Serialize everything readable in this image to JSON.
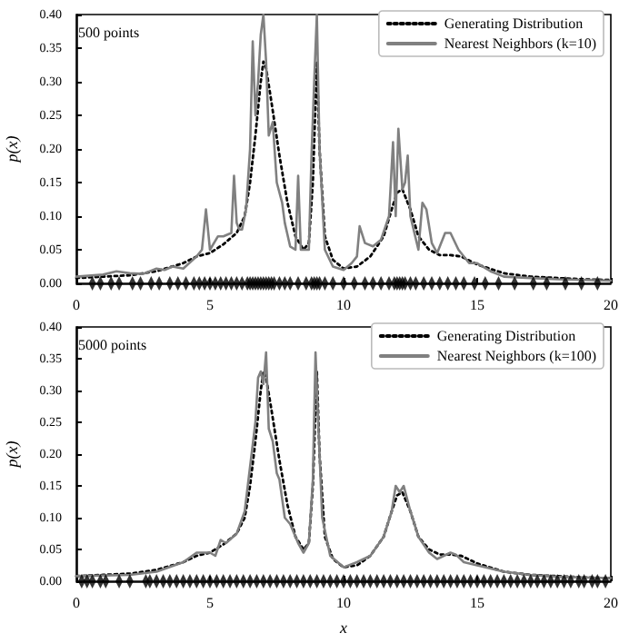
{
  "chart_data": [
    {
      "type": "line",
      "ylabel": "p(x)",
      "annotations": [
        "500 points"
      ],
      "xlim": [
        0,
        20
      ],
      "xticks": [
        0,
        5,
        10,
        15,
        20
      ],
      "ylim": [
        0,
        0.4
      ],
      "yticks": [
        {
          "value": 0,
          "label": "0.00"
        },
        0.05,
        {
          "value": 0.1,
          "label": "0.10"
        },
        0.15,
        {
          "value": 0.2,
          "label": "0.20"
        },
        0.25,
        {
          "value": 0.3,
          "label": "0.30"
        },
        0.35,
        {
          "value": 0.4,
          "label": "0.40"
        }
      ],
      "grid": false,
      "legend": "top right",
      "marker": "none",
      "series": [
        {
          "type": "scatter",
          "marker": "diamond",
          "color": "#000000",
          "x": [
            0.6,
            0.9,
            1.3,
            1.6,
            2.1,
            2.4,
            2.8,
            3.1,
            3.5,
            3.8,
            4.1,
            4.4,
            4.6,
            4.8,
            5,
            5.2,
            5.4,
            5.6,
            5.8,
            6,
            6.2,
            6.4,
            6.5,
            6.6,
            6.7,
            6.8,
            6.9,
            7,
            7.1,
            7.2,
            7.3,
            7.4,
            7.6,
            7.8,
            8,
            8.3,
            8.6,
            8.8,
            8.9,
            9,
            9.1,
            9.3,
            9.6,
            10,
            10.4,
            10.8,
            11.1,
            11.4,
            11.7,
            11.9,
            12,
            12.1,
            12.2,
            12.3,
            12.5,
            12.7,
            13,
            13.3,
            13.6,
            13.9,
            14.2,
            14.5,
            14.9,
            15.3,
            15.8,
            16.4,
            17.1,
            17.6,
            18.3,
            18.9,
            19.5
          ],
          "values": [
            0,
            0,
            0,
            0,
            0,
            0,
            0,
            0,
            0,
            0,
            0,
            0,
            0,
            0,
            0,
            0,
            0,
            0,
            0,
            0,
            0,
            0,
            0,
            0,
            0,
            0,
            0,
            0,
            0,
            0,
            0,
            0,
            0,
            0,
            0,
            0,
            0,
            0,
            0,
            0,
            0,
            0,
            0,
            0,
            0,
            0,
            0,
            0,
            0,
            0,
            0,
            0,
            0,
            0,
            0,
            0,
            0,
            0,
            0,
            0,
            0,
            0,
            0,
            0,
            0,
            0,
            0,
            0,
            0,
            0,
            0
          ]
        },
        {
          "name": "Generating Distribution",
          "color": "#000000",
          "line_style": "dotted",
          "x": [
            0,
            1,
            2,
            3,
            4,
            4.5,
            5,
            5.5,
            6,
            6.3,
            6.5,
            6.7,
            6.9,
            7,
            7.1,
            7.3,
            7.6,
            7.9,
            8.2,
            8.5,
            8.7,
            8.85,
            9,
            9.1,
            9.3,
            9.6,
            10,
            10.5,
            11,
            11.5,
            11.8,
            12,
            12.2,
            12.5,
            12.8,
            13.2,
            13.6,
            14,
            14.4,
            15,
            16,
            17,
            18,
            19,
            20
          ],
          "values": [
            0.008,
            0.01,
            0.012,
            0.018,
            0.03,
            0.04,
            0.045,
            0.058,
            0.075,
            0.1,
            0.15,
            0.22,
            0.3,
            0.33,
            0.32,
            0.27,
            0.19,
            0.12,
            0.07,
            0.05,
            0.06,
            0.15,
            0.33,
            0.2,
            0.07,
            0.035,
            0.022,
            0.025,
            0.04,
            0.07,
            0.11,
            0.135,
            0.14,
            0.11,
            0.07,
            0.05,
            0.042,
            0.042,
            0.04,
            0.028,
            0.015,
            0.01,
            0.008,
            0.006,
            0.005
          ]
        },
        {
          "name": "Nearest Neighbors (k=10)",
          "color": "#808080",
          "line_style": "solid",
          "x": [
            0,
            1,
            1.5,
            2,
            2.5,
            3,
            3.3,
            3.6,
            4,
            4.5,
            4.7,
            4.85,
            5,
            5.3,
            5.5,
            5.8,
            5.9,
            6,
            6.1,
            6.2,
            6.35,
            6.5,
            6.6,
            6.7,
            6.8,
            6.9,
            7,
            7.1,
            7.2,
            7.35,
            7.5,
            7.7,
            7.8,
            8,
            8.2,
            8.3,
            8.4,
            8.7,
            8.8,
            8.9,
            9,
            9.1,
            9.3,
            9.6,
            10,
            10.3,
            10.5,
            10.6,
            10.8,
            11.1,
            11.4,
            11.7,
            11.85,
            11.95,
            12.05,
            12.2,
            12.3,
            12.4,
            12.5,
            12.8,
            12.95,
            13.1,
            13.3,
            13.5,
            13.8,
            14,
            14.3,
            14.7,
            15,
            15.5,
            16,
            17,
            18,
            19,
            20
          ],
          "values": [
            0.01,
            0.013,
            0.018,
            0.015,
            0.014,
            0.022,
            0.02,
            0.025,
            0.022,
            0.04,
            0.05,
            0.11,
            0.05,
            0.07,
            0.07,
            0.075,
            0.16,
            0.09,
            0.08,
            0.08,
            0.11,
            0.2,
            0.36,
            0.25,
            0.3,
            0.37,
            0.4,
            0.33,
            0.22,
            0.24,
            0.15,
            0.12,
            0.09,
            0.055,
            0.05,
            0.16,
            0.05,
            0.05,
            0.19,
            0.3,
            0.4,
            0.2,
            0.05,
            0.025,
            0.02,
            0.03,
            0.04,
            0.085,
            0.06,
            0.055,
            0.065,
            0.1,
            0.21,
            0.1,
            0.23,
            0.14,
            0.15,
            0.19,
            0.1,
            0.05,
            0.12,
            0.11,
            0.06,
            0.045,
            0.075,
            0.075,
            0.05,
            0.03,
            0.03,
            0.018,
            0.01,
            0.008,
            0.006,
            0.005,
            0.004
          ]
        }
      ]
    },
    {
      "type": "line",
      "xlabel": "x",
      "ylabel": "p(x)",
      "annotations": [
        "5000 points"
      ],
      "xlim": [
        0,
        20
      ],
      "xticks": [
        0,
        5,
        10,
        15,
        20
      ],
      "ylim": [
        0,
        0.4
      ],
      "yticks": [
        {
          "value": 0,
          "label": "0.00"
        },
        0.05,
        {
          "value": 0.1,
          "label": "0.10"
        },
        0.15,
        {
          "value": 0.2,
          "label": "0.20"
        },
        0.25,
        {
          "value": 0.3,
          "label": "0.30"
        },
        0.35,
        {
          "value": 0.4,
          "label": "0.40"
        }
      ],
      "grid": false,
      "legend": "top right",
      "marker": "none",
      "series": [
        {
          "type": "scatter",
          "marker": "diamond",
          "color": "#000000",
          "x": [
            0.2,
            0.4,
            0.6,
            0.9,
            1.1,
            1.6,
            2,
            2.6,
            2.75,
            3,
            3.25,
            3.5,
            3.75,
            4,
            4.25,
            4.5,
            4.75,
            5,
            5.25,
            5.5,
            5.75,
            6,
            6.25,
            6.5,
            6.75,
            7,
            7.25,
            7.5,
            7.75,
            8,
            8.25,
            8.5,
            8.75,
            9,
            9.25,
            9.5,
            9.75,
            10,
            10.25,
            10.5,
            10.75,
            11,
            11.25,
            11.5,
            11.75,
            12,
            12.25,
            12.5,
            12.75,
            13,
            13.25,
            13.5,
            13.75,
            14,
            14.25,
            14.5,
            14.75,
            15,
            15.25,
            15.5,
            15.75,
            16,
            16.25,
            16.5,
            16.75,
            17,
            17.25,
            17.5,
            17.75,
            18,
            18.25,
            18.5,
            18.8,
            19,
            19.3,
            19.5,
            19.8
          ],
          "values": [
            0,
            0,
            0,
            0,
            0,
            0,
            0,
            0,
            0,
            0,
            0,
            0,
            0,
            0,
            0,
            0,
            0,
            0,
            0,
            0,
            0,
            0,
            0,
            0,
            0,
            0,
            0,
            0,
            0,
            0,
            0,
            0,
            0,
            0,
            0,
            0,
            0,
            0,
            0,
            0,
            0,
            0,
            0,
            0,
            0,
            0,
            0,
            0,
            0,
            0,
            0,
            0,
            0,
            0,
            0,
            0,
            0,
            0,
            0,
            0,
            0,
            0,
            0,
            0,
            0,
            0,
            0,
            0,
            0,
            0,
            0,
            0,
            0,
            0,
            0,
            0,
            0
          ]
        },
        {
          "name": "Generating Distribution",
          "color": "#000000",
          "line_style": "dotted",
          "x": [
            0,
            1,
            2,
            3,
            4,
            4.5,
            5,
            5.5,
            6,
            6.3,
            6.5,
            6.7,
            6.9,
            7,
            7.1,
            7.3,
            7.6,
            7.9,
            8.2,
            8.5,
            8.7,
            8.85,
            9,
            9.1,
            9.3,
            9.6,
            10,
            10.5,
            11,
            11.5,
            11.8,
            12,
            12.2,
            12.5,
            12.8,
            13.2,
            13.6,
            14,
            14.4,
            15,
            16,
            17,
            18,
            19,
            20
          ],
          "values": [
            0.008,
            0.01,
            0.012,
            0.018,
            0.03,
            0.04,
            0.045,
            0.058,
            0.075,
            0.1,
            0.15,
            0.22,
            0.3,
            0.33,
            0.32,
            0.27,
            0.19,
            0.12,
            0.07,
            0.05,
            0.06,
            0.15,
            0.33,
            0.2,
            0.07,
            0.035,
            0.022,
            0.025,
            0.04,
            0.07,
            0.11,
            0.135,
            0.14,
            0.11,
            0.07,
            0.05,
            0.042,
            0.042,
            0.04,
            0.028,
            0.015,
            0.01,
            0.008,
            0.006,
            0.005
          ]
        },
        {
          "name": "Nearest Neighbors (k=100)",
          "color": "#808080",
          "line_style": "solid",
          "x": [
            0,
            2,
            3,
            4,
            4.5,
            5,
            5.2,
            5.4,
            5.6,
            6,
            6.3,
            6.5,
            6.7,
            6.8,
            6.9,
            7,
            7.1,
            7.2,
            7.35,
            7.5,
            7.6,
            7.8,
            8,
            8.3,
            8.5,
            8.7,
            8.85,
            8.95,
            9.05,
            9.2,
            9.5,
            10,
            10.5,
            11,
            11.5,
            11.8,
            11.95,
            12.1,
            12.25,
            12.5,
            12.8,
            13.2,
            13.5,
            14,
            14.2,
            14.5,
            15,
            16,
            17,
            18,
            20
          ],
          "values": [
            0.008,
            0.01,
            0.015,
            0.03,
            0.045,
            0.045,
            0.04,
            0.065,
            0.06,
            0.075,
            0.11,
            0.18,
            0.25,
            0.32,
            0.33,
            0.31,
            0.36,
            0.24,
            0.22,
            0.17,
            0.16,
            0.1,
            0.09,
            0.06,
            0.045,
            0.06,
            0.16,
            0.36,
            0.25,
            0.1,
            0.04,
            0.022,
            0.03,
            0.04,
            0.07,
            0.11,
            0.15,
            0.14,
            0.15,
            0.11,
            0.07,
            0.045,
            0.035,
            0.045,
            0.042,
            0.03,
            0.025,
            0.015,
            0.01,
            0.007,
            0.005
          ]
        }
      ]
    }
  ]
}
